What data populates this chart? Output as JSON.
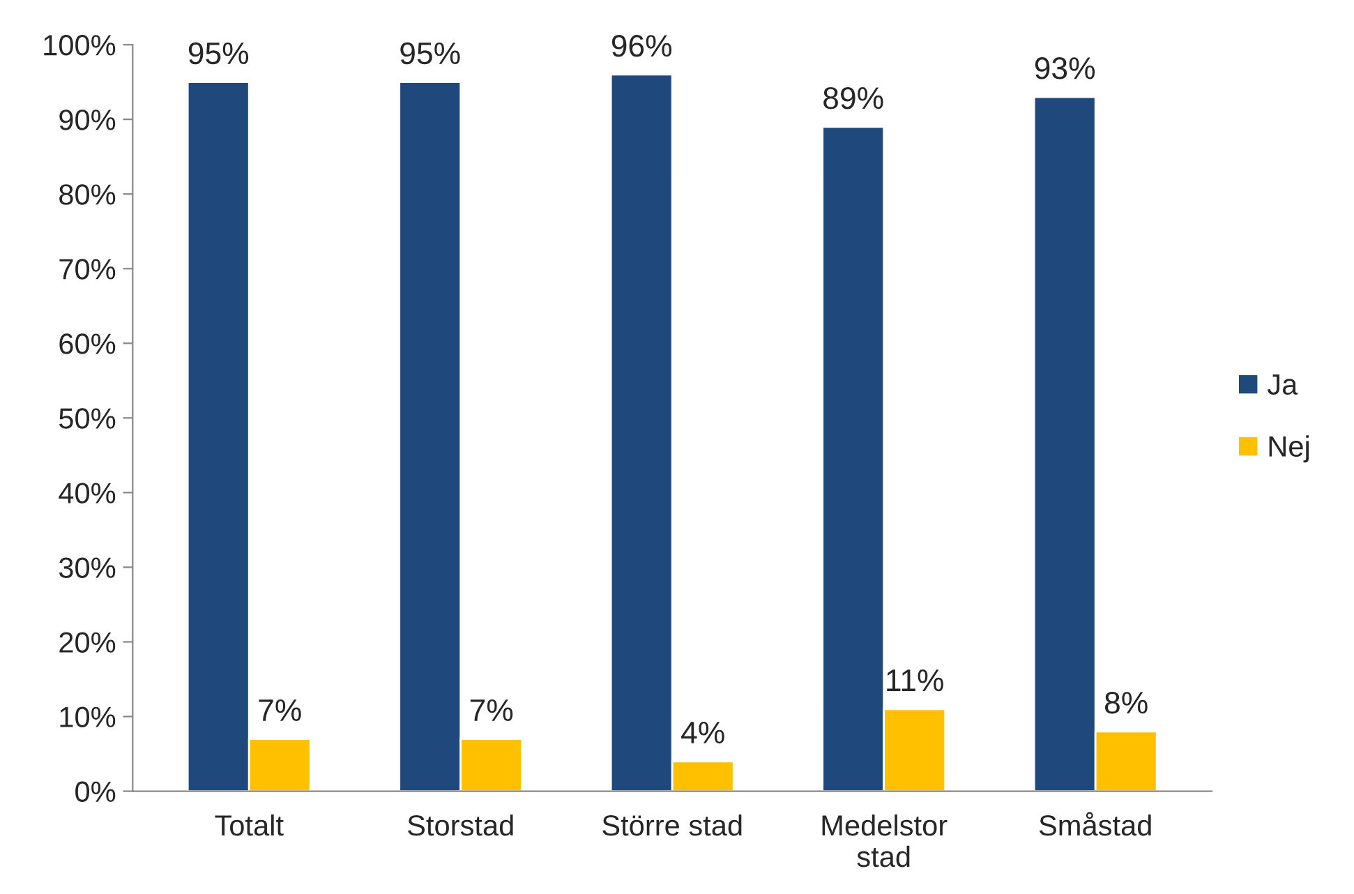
{
  "chart_data": {
    "type": "bar",
    "categories": [
      "Totalt",
      "Storstad",
      "Större stad",
      "Medelstor\nstad",
      "Småstad"
    ],
    "series": [
      {
        "name": "Ja",
        "color": "#1f497d",
        "values": [
          95,
          95,
          96,
          89,
          93
        ],
        "value_labels": [
          "95%",
          "95%",
          "96%",
          "89%",
          "93%"
        ]
      },
      {
        "name": "Nej",
        "color": "#ffc000",
        "values": [
          7,
          7,
          4,
          11,
          8
        ],
        "value_labels": [
          "7%",
          "7%",
          "4%",
          "11%",
          "8%"
        ]
      }
    ],
    "ylim": [
      0,
      100
    ],
    "yticks": [
      {
        "value": 0,
        "label": "0%"
      },
      {
        "value": 10,
        "label": "10%"
      },
      {
        "value": 20,
        "label": "20%"
      },
      {
        "value": 30,
        "label": "30%"
      },
      {
        "value": 40,
        "label": "40%"
      },
      {
        "value": 50,
        "label": "50%"
      },
      {
        "value": 60,
        "label": "60%"
      },
      {
        "value": 70,
        "label": "70%"
      },
      {
        "value": 80,
        "label": "80%"
      },
      {
        "value": 90,
        "label": "90%"
      },
      {
        "value": 100,
        "label": "100%"
      }
    ],
    "grid": false,
    "legend": "right"
  }
}
